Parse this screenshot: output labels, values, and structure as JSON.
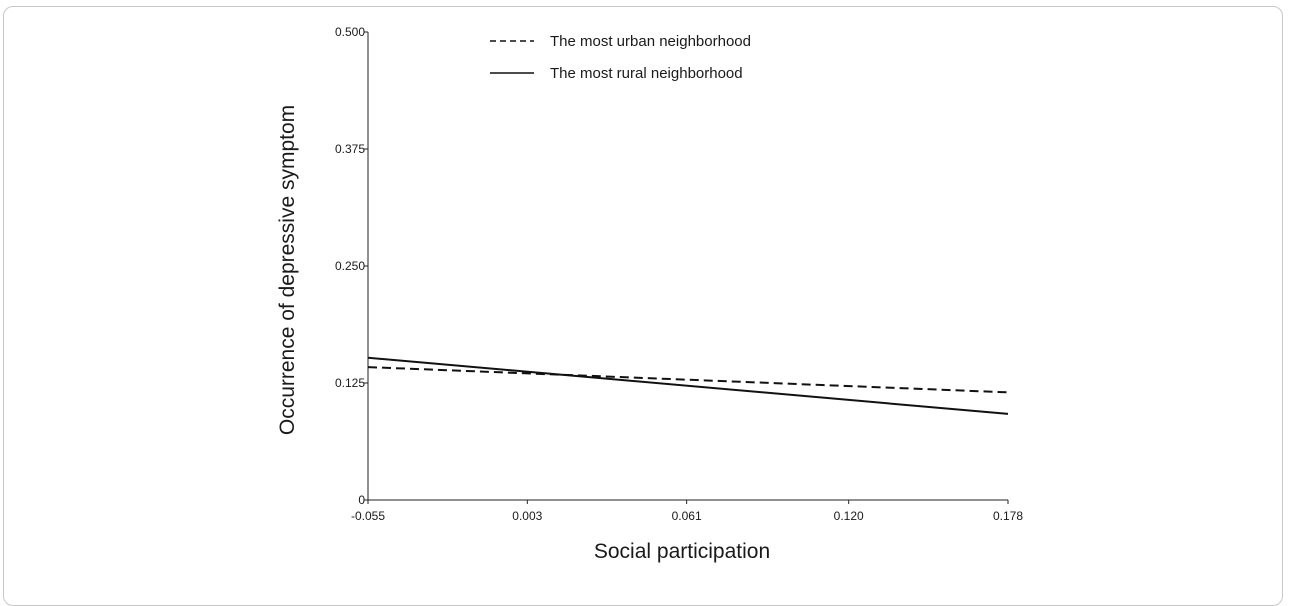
{
  "chart_data": {
    "type": "line",
    "xlabel": "Social participation",
    "ylabel": "Occurrence of depressive symptom",
    "xlim": [
      -0.055,
      0.178
    ],
    "ylim": [
      0,
      0.5
    ],
    "x_ticks": [
      "-0.055",
      "0.003",
      "0.061",
      "0.120",
      "0.178"
    ],
    "y_ticks": [
      "0",
      "0.125",
      "0.250",
      "0.375",
      "0.500"
    ],
    "legend_position": "top",
    "grid": false,
    "series": [
      {
        "name": "The most urban neighborhood",
        "style": "dashed",
        "color": "#111111",
        "x": [
          -0.055,
          0.178
        ],
        "y": [
          0.142,
          0.115
        ]
      },
      {
        "name": "The most rural neighborhood",
        "style": "solid",
        "color": "#111111",
        "x": [
          -0.055,
          0.178
        ],
        "y": [
          0.152,
          0.092
        ]
      }
    ]
  }
}
